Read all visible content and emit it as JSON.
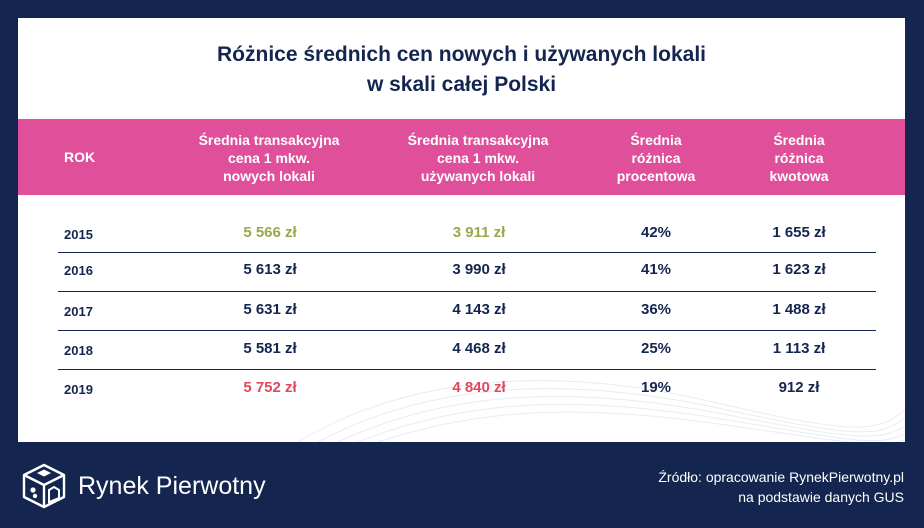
{
  "title": {
    "line1": "Różnice średnich cen nowych i używanych lokali",
    "line2": "w skali całej Polski"
  },
  "headers": {
    "rok": "ROK",
    "new": [
      "Średnia transakcyjna",
      "cena 1 mkw.",
      "nowych lokali"
    ],
    "used": [
      "Średnia transakcyjna",
      "cena 1 mkw.",
      "używanych lokali"
    ],
    "pct": [
      "Średnia",
      "różnica",
      "procentowa"
    ],
    "amt": [
      "Średnia",
      "różnica",
      "kwotowa"
    ]
  },
  "rows": [
    {
      "year": "2015",
      "new": "5 566 zł",
      "used": "3 911 zł",
      "pct": "42%",
      "amt": "1 655 zł"
    },
    {
      "year": "2016",
      "new": "5 613 zł",
      "used": "3 990 zł",
      "pct": "41%",
      "amt": "1 623 zł"
    },
    {
      "year": "2017",
      "new": "5 631 zł",
      "used": "4 143 zł",
      "pct": "36%",
      "amt": "1 488 zł"
    },
    {
      "year": "2018",
      "new": "5 581 zł",
      "used": "4 468 zł",
      "pct": "25%",
      "amt": "1 113 zł"
    },
    {
      "year": "2019",
      "new": "5 752 zł",
      "used": "4 840 zł",
      "pct": "19%",
      "amt": "912 zł"
    }
  ],
  "highlights": {
    "min_color": "#9aa84a",
    "max_color": "#e04a5c"
  },
  "colors": {
    "navy": "#14264f",
    "pink": "#e0509a"
  },
  "brand": {
    "name": "Rynek Pierwotny",
    "logo_icon": "dice-house-logo-icon"
  },
  "source": {
    "line1": "Źródło: opracowanie RynekPierwotny.pl",
    "line2": "na podstawie danych GUS"
  }
}
